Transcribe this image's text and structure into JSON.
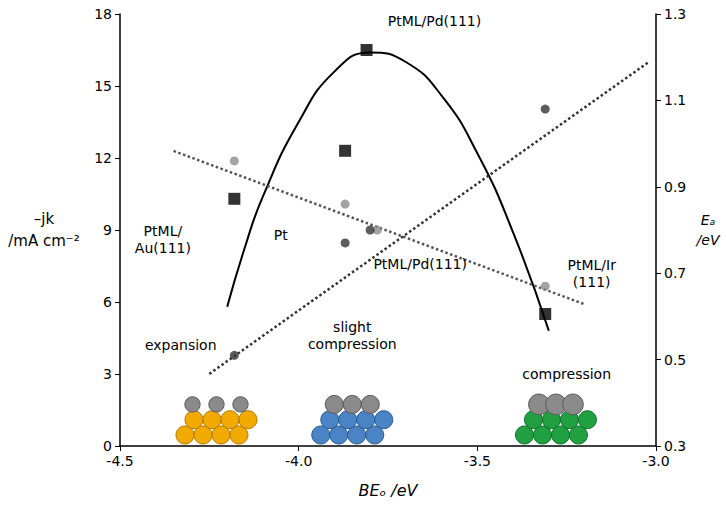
{
  "chart_data": {
    "type": "scatter",
    "x_label": "BEₒ /eV",
    "y_label": "–jk /mA cm⁻²",
    "y2_label": "Eₐ /eV",
    "xlim": [
      -4.5,
      -3.0
    ],
    "xticks": [
      {
        "value": -4.5,
        "label": "-4.5"
      },
      {
        "value": -4,
        "label": "-4.0"
      },
      {
        "value": -3.5,
        "label": "-3.5"
      },
      {
        "value": -3,
        "label": "-3.0"
      }
    ],
    "ylim": [
      0,
      18
    ],
    "yticks": [
      0,
      3,
      6,
      9,
      12,
      15,
      18
    ],
    "y2lim": [
      0.3,
      1.3
    ],
    "y2ticks": [
      0.3,
      0.5,
      0.7,
      0.9,
      1.1,
      1.3
    ],
    "grid": false,
    "series": [
      {
        "type": "line",
        "color": "#000000",
        "line_style": "solid",
        "marker": "none",
        "x": [
          -4.2,
          -4.15,
          -4.1,
          -4.0,
          -3.9,
          -3.8,
          -3.7,
          -3.6,
          -3.5,
          -3.4,
          -3.3
        ],
        "values": [
          5.8,
          8.3,
          10.4,
          13.5,
          15.6,
          16.4,
          16.0,
          14.6,
          12.2,
          8.9,
          4.8
        ]
      },
      {
        "type": "scatter",
        "color": "#000000",
        "marker": "square",
        "x": [
          -4.18,
          -3.87,
          -3.81,
          -3.31
        ],
        "values": [
          10.3,
          12.3,
          16.5,
          5.5
        ]
      },
      {
        "type": "line",
        "color": "#555555",
        "line_style": "dotted",
        "marker": "none",
        "axis": "y2",
        "x": [
          -4.35,
          -3.2
        ],
        "values": [
          0.983,
          0.628
        ]
      },
      {
        "type": "line",
        "color": "#333333",
        "line_style": "dotted",
        "marker": "none",
        "axis": "y2",
        "x": [
          -4.25,
          -3.02
        ],
        "values": [
          0.467,
          1.189
        ]
      },
      {
        "type": "scatter",
        "color": "#8c8c8c",
        "marker": "circle",
        "axis": "y2",
        "x": [
          -4.18,
          -3.87,
          -3.78,
          -3.31
        ],
        "values": [
          0.96,
          0.86,
          0.8,
          0.67
        ]
      },
      {
        "type": "scatter",
        "color": "#333333",
        "marker": "circle",
        "axis": "y2",
        "x": [
          -4.18,
          -3.87,
          -3.8,
          -3.31
        ],
        "values": [
          0.51,
          0.77,
          0.8,
          1.08
        ]
      }
    ],
    "annotations": [
      "PtML/Pd(111)",
      "PtML/Au(111)",
      "Pt",
      "PtML/Pd(111)",
      "PtML/Ir(111)",
      "expansion",
      "slight compression",
      "compression"
    ]
  }
}
